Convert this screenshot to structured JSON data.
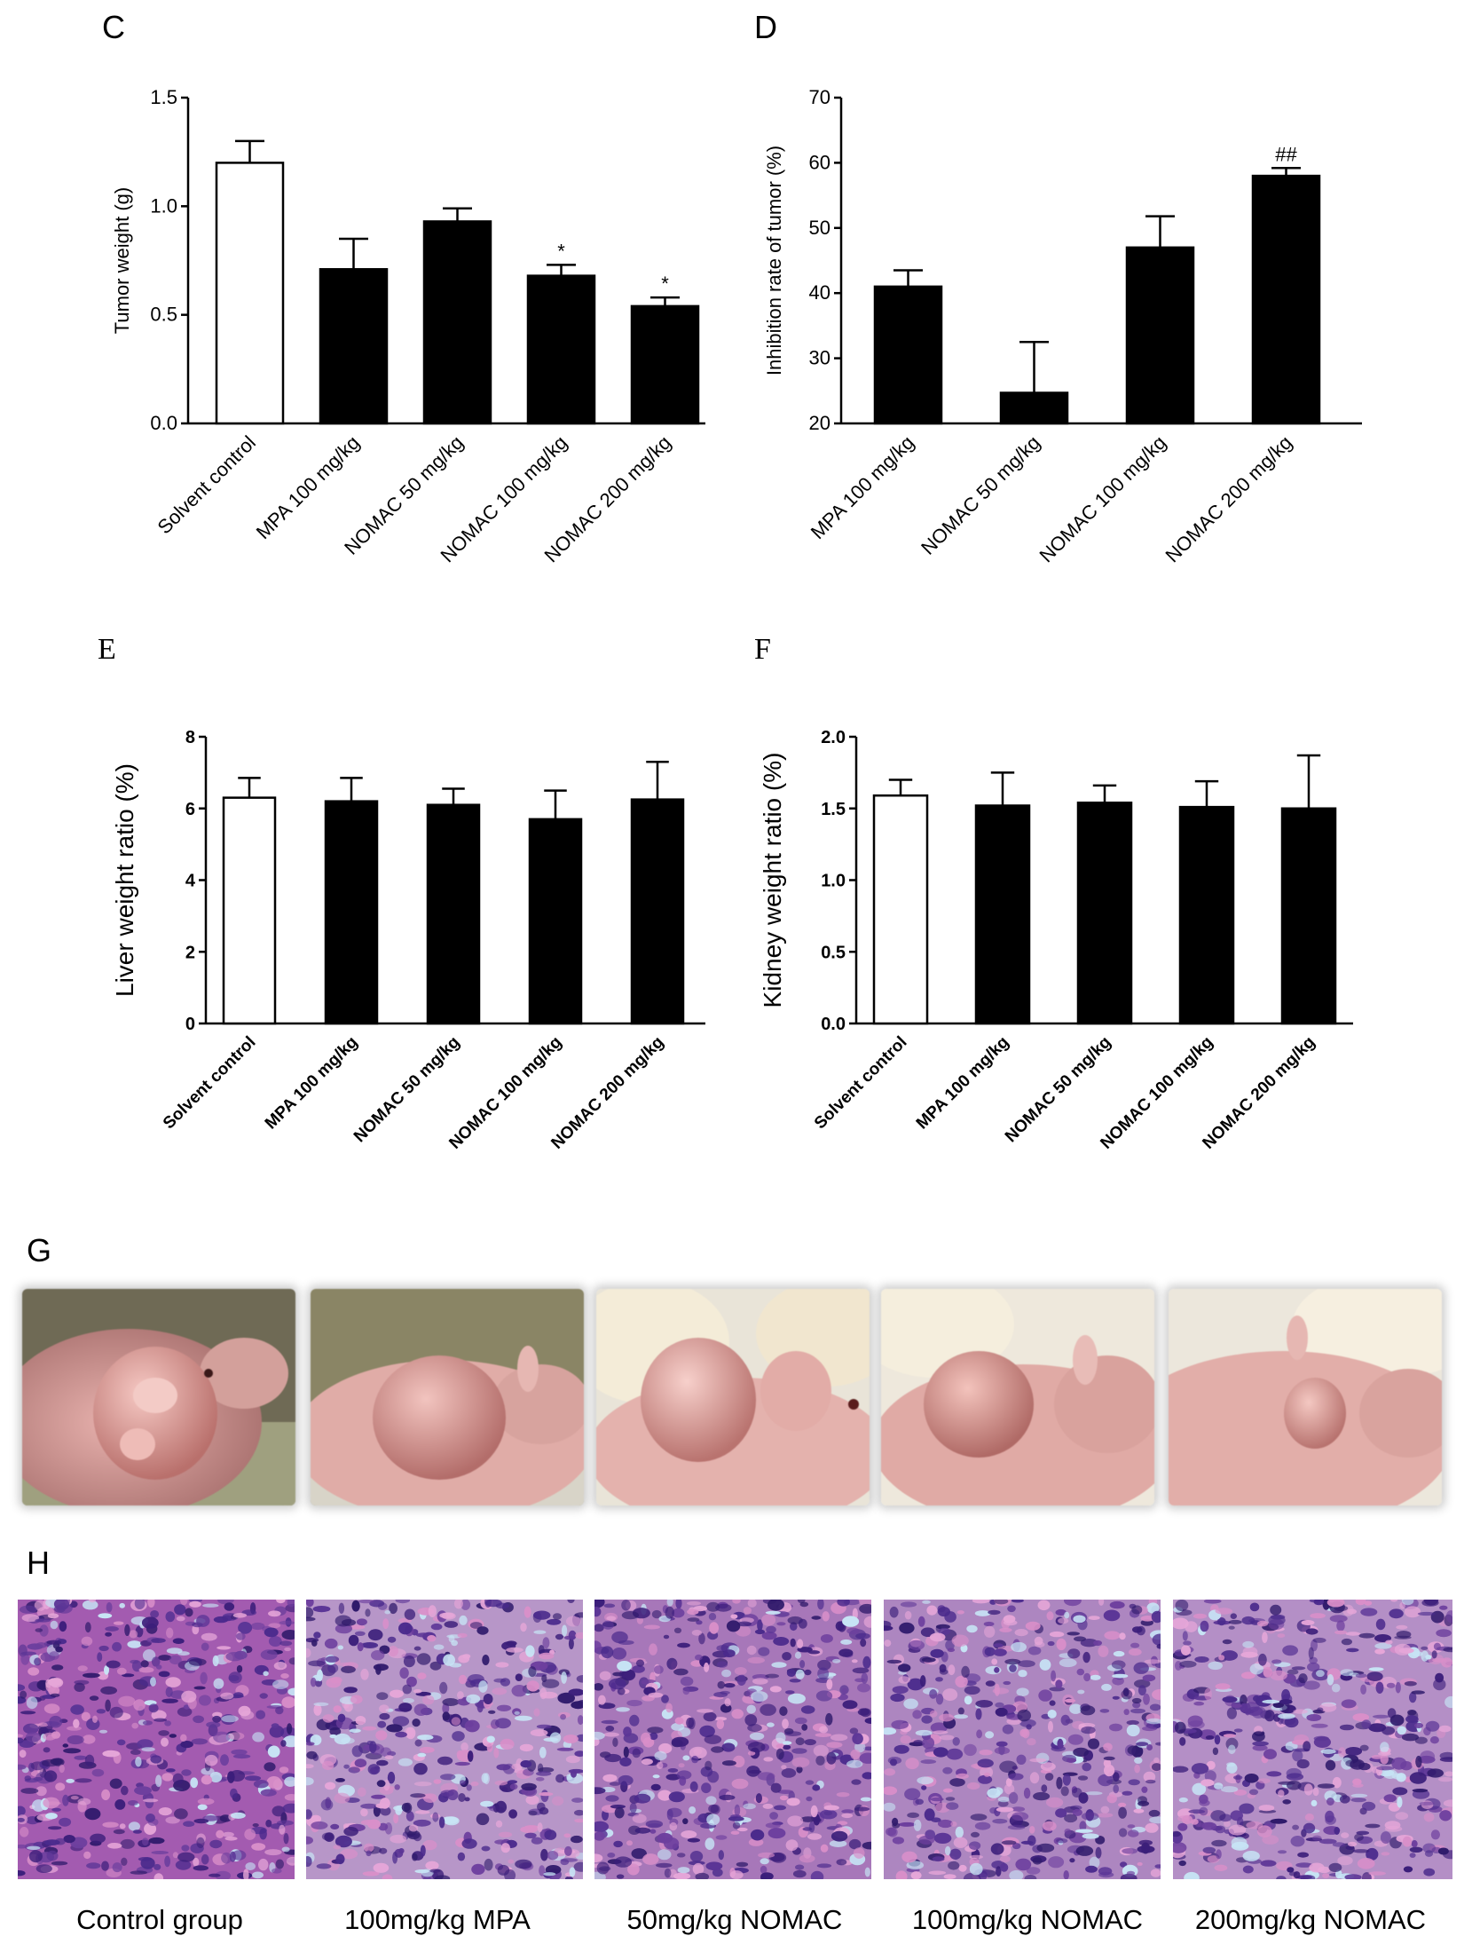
{
  "panels": {
    "C": "C",
    "D": "D",
    "E": "E",
    "F": "F",
    "G": "G",
    "H": "H"
  },
  "chart_data": [
    {
      "id": "C",
      "type": "bar",
      "categories": [
        "Solvent control",
        "MPA 100 mg/kg",
        "NOMAC 50 mg/kg",
        "NOMAC 100 mg/kg",
        "NOMAC 200 mg/kg"
      ],
      "values": [
        1.2,
        0.71,
        0.93,
        0.68,
        0.54
      ],
      "errors": [
        0.1,
        0.14,
        0.06,
        0.05,
        0.04
      ],
      "fills": [
        "white",
        "black",
        "black",
        "black",
        "black"
      ],
      "annotations": [
        "",
        "",
        "",
        "*",
        "*"
      ],
      "ylabel": "Tumor weight (g)",
      "ylim": [
        0,
        1.5
      ],
      "yticks": [
        0.0,
        0.5,
        1.0,
        1.5
      ],
      "ytick_labels": [
        "0.0",
        "0.5",
        "1.0",
        "1.5"
      ]
    },
    {
      "id": "D",
      "type": "bar",
      "categories": [
        "MPA 100 mg/kg",
        "NOMAC 50 mg/kg",
        "NOMAC 100 mg/kg",
        "NOMAC 200 mg/kg"
      ],
      "values": [
        41,
        24.7,
        47,
        58
      ],
      "errors": [
        2.5,
        7.8,
        4.8,
        1.2
      ],
      "fills": [
        "black",
        "black",
        "black",
        "black"
      ],
      "annotations": [
        "",
        "",
        "",
        "##"
      ],
      "ylabel": "Inhibition rate of tumor (%)",
      "ylim": [
        20,
        70
      ],
      "yticks": [
        20,
        30,
        40,
        50,
        60,
        70
      ],
      "ytick_labels": [
        "20",
        "30",
        "40",
        "50",
        "60",
        "70"
      ]
    },
    {
      "id": "E",
      "type": "bar",
      "categories": [
        "Solvent control",
        "MPA 100 mg/kg",
        "NOMAC 50 mg/kg",
        "NOMAC 100 mg/kg",
        "NOMAC 200 mg/kg"
      ],
      "values": [
        6.3,
        6.2,
        6.1,
        5.7,
        6.25
      ],
      "errors": [
        0.55,
        0.65,
        0.45,
        0.8,
        1.05
      ],
      "fills": [
        "white",
        "black",
        "black",
        "black",
        "black"
      ],
      "annotations": [
        "",
        "",
        "",
        "",
        ""
      ],
      "ylabel": "Liver weight ratio (%)",
      "ylim": [
        0,
        8
      ],
      "yticks": [
        0,
        2,
        4,
        6,
        8
      ],
      "ytick_labels": [
        "0",
        "2",
        "4",
        "6",
        "8"
      ]
    },
    {
      "id": "F",
      "type": "bar",
      "categories": [
        "Solvent control",
        "MPA 100 mg/kg",
        "NOMAC 50 mg/kg",
        "NOMAC 100 mg/kg",
        "NOMAC 200 mg/kg"
      ],
      "values": [
        1.59,
        1.52,
        1.54,
        1.51,
        1.5
      ],
      "errors": [
        0.11,
        0.23,
        0.12,
        0.18,
        0.37
      ],
      "fills": [
        "white",
        "black",
        "black",
        "black",
        "black"
      ],
      "annotations": [
        "",
        "",
        "",
        "",
        ""
      ],
      "ylabel": "Kidney weight ratio (%)",
      "ylim": [
        0,
        2.0
      ],
      "yticks": [
        0.0,
        0.5,
        1.0,
        1.5,
        2.0
      ],
      "ytick_labels": [
        "0.0",
        "0.5",
        "1.0",
        "1.5",
        "2.0"
      ]
    }
  ],
  "histology_captions": [
    "Control group",
    "100mg/kg MPA",
    "50mg/kg NOMAC",
    "100mg/kg NOMAC",
    "200mg/kg NOMAC"
  ]
}
